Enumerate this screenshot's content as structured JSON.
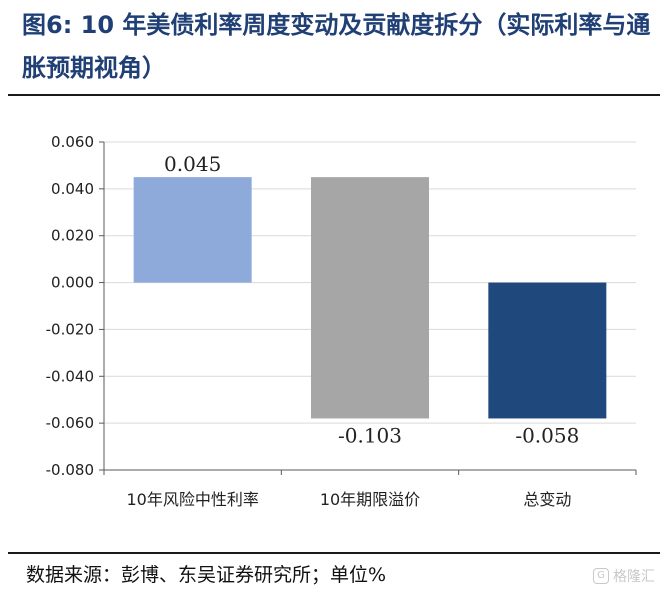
{
  "header": {
    "title": "图6:  10 年美债利率周度变动及贡献度拆分（实际利率与通胀预期视角）"
  },
  "footer": {
    "source": "数据来源：彭博、东吴证券研究所；单位%",
    "watermark": "格隆汇"
  },
  "chart_data": {
    "type": "bar",
    "title": "",
    "xlabel": "",
    "ylabel": "",
    "categories": [
      "10年风险中性利率",
      "10年期限溢价",
      "总变动"
    ],
    "values": [
      0.045,
      -0.103,
      -0.058
    ],
    "data_labels": [
      "0.045",
      "-0.103",
      "-0.058"
    ],
    "bar_colors": [
      "#8eaadb",
      "#a6a6a6",
      "#1f497d"
    ],
    "waterfall_bases": [
      0,
      0.045,
      0
    ],
    "ylim": [
      -0.08,
      0.06
    ],
    "yticks": [
      0.06,
      0.04,
      0.02,
      0.0,
      -0.02,
      -0.04,
      -0.06,
      -0.08
    ],
    "ytick_labels": [
      "0.060",
      "0.040",
      "0.020",
      "0.000",
      "-0.020",
      "-0.040",
      "-0.060",
      "-0.080"
    ],
    "grid": true,
    "legend": "none"
  }
}
